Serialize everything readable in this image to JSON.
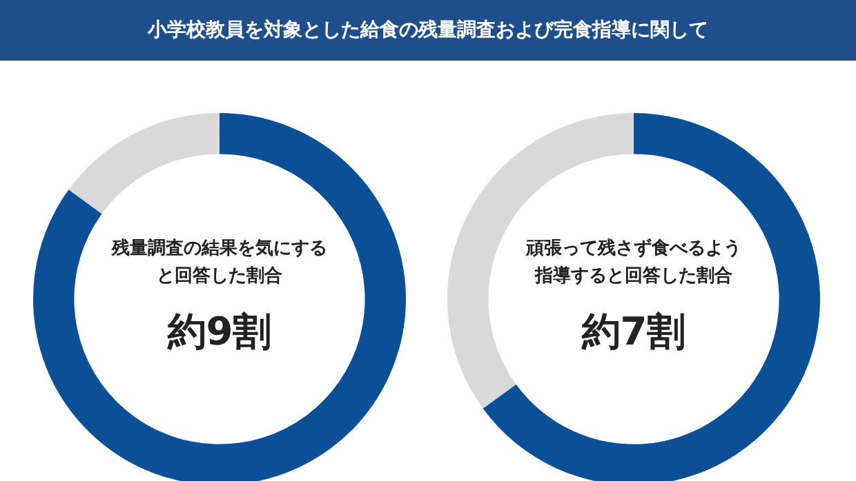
{
  "chart_data": [
    {
      "type": "donut",
      "title": "小学校教員を対象とした給食の残量調査および完食指導に関して",
      "categories": [
        null,
        null
      ],
      "values": [
        85,
        15
      ],
      "colors": [
        "#0b4f96",
        "#d9d9d9"
      ],
      "annotations": [
        "残量調査の結果を気にする",
        "と回答した割合",
        "約9割"
      ],
      "legend": false
    },
    {
      "type": "donut",
      "categories": [
        null,
        null
      ],
      "values": [
        65,
        35
      ],
      "colors": [
        "#0b4f96",
        "#d9d9d9"
      ],
      "annotations": [
        "頑張って残さず食べるよう",
        "指導すると回答した割合",
        "約7割"
      ],
      "legend": false
    }
  ]
}
